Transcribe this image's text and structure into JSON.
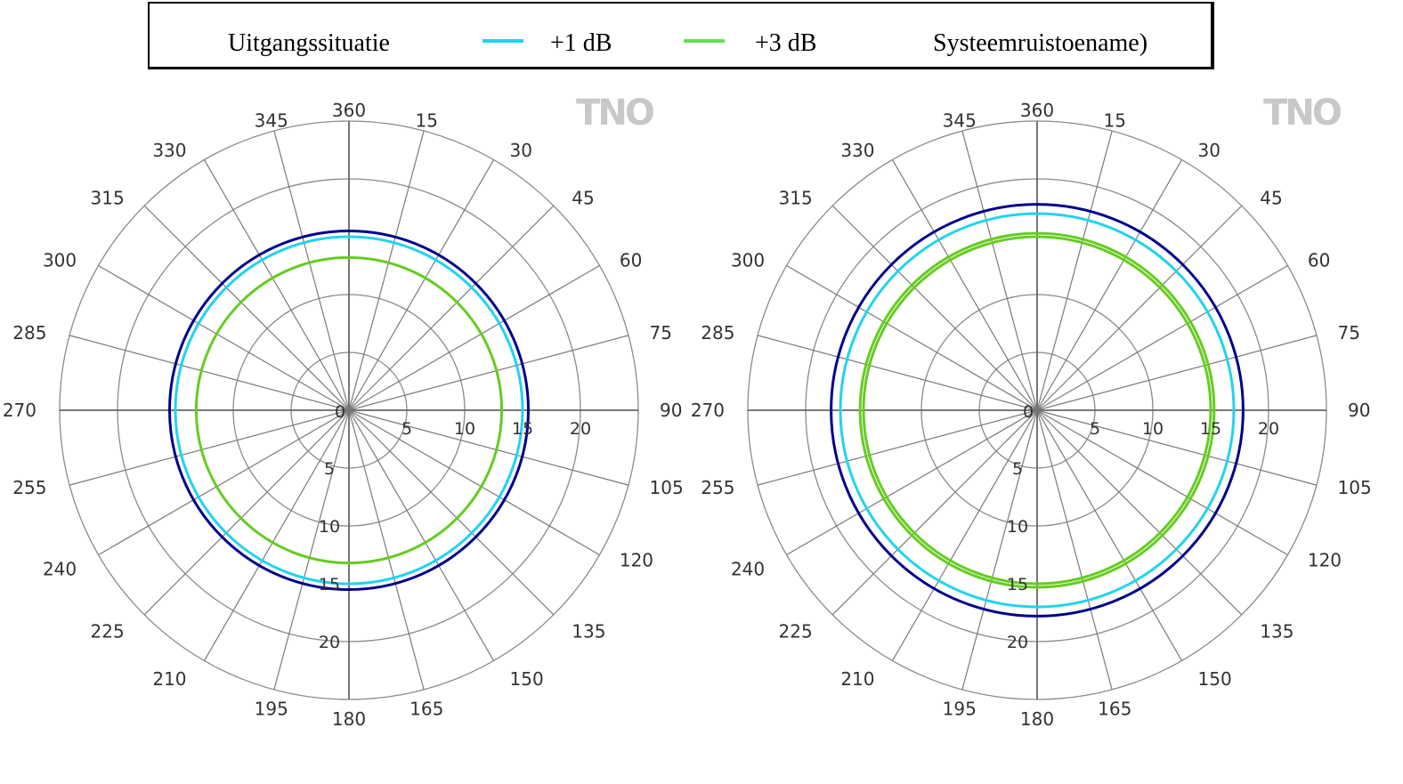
{
  "legend": {
    "items": [
      {
        "label": "Uitgangssituatie",
        "color": "#00008b",
        "swatch": false
      },
      {
        "label": "+1  dB",
        "color": "#22d3ee",
        "swatch": true
      },
      {
        "label": "+3  dB",
        "color": "#66dd55",
        "swatch": true
      },
      {
        "label": "Systeemruistoename)",
        "color": "#000000",
        "swatch": false
      }
    ]
  },
  "chart_data": [
    {
      "type": "polar",
      "logo": "TNO",
      "angle_ticks": [
        "360",
        "15",
        "30",
        "45",
        "60",
        "75",
        "90",
        "105",
        "120",
        "135",
        "150",
        "165",
        "180",
        "195",
        "210",
        "225",
        "240",
        "255",
        "270",
        "285",
        "300",
        "315",
        "330",
        "345"
      ],
      "angle_step_deg": 15,
      "radial_ticks": [
        0,
        5,
        10,
        15,
        20
      ],
      "radial_max": 25,
      "grid": true,
      "series": [
        {
          "name": "Uitgangssituatie",
          "color": "#00008b",
          "radius": 15.5
        },
        {
          "name": "+1  dB",
          "color": "#22d3ee",
          "radius": 15.0
        },
        {
          "name": "+3  dB",
          "color": "#66cc22",
          "radius": 13.2
        }
      ]
    },
    {
      "type": "polar",
      "logo": "TNO",
      "angle_ticks": [
        "360",
        "15",
        "30",
        "45",
        "60",
        "75",
        "90",
        "105",
        "120",
        "135",
        "150",
        "165",
        "180",
        "195",
        "210",
        "225",
        "240",
        "255",
        "270",
        "285",
        "300",
        "315",
        "330",
        "345"
      ],
      "angle_step_deg": 15,
      "radial_ticks": [
        0,
        5,
        10,
        15,
        20
      ],
      "radial_max": 25,
      "grid": true,
      "series": [
        {
          "name": "Uitgangssituatie",
          "color": "#00008b",
          "radius": 17.8
        },
        {
          "name": "+1  dB",
          "color": "#22d3ee",
          "radius": 17.0
        },
        {
          "name": "+3  dB",
          "color": "#66cc22",
          "radius": 15.3
        },
        {
          "name": "+3  dB",
          "color": "#66cc22",
          "radius": 15.0
        }
      ]
    }
  ]
}
